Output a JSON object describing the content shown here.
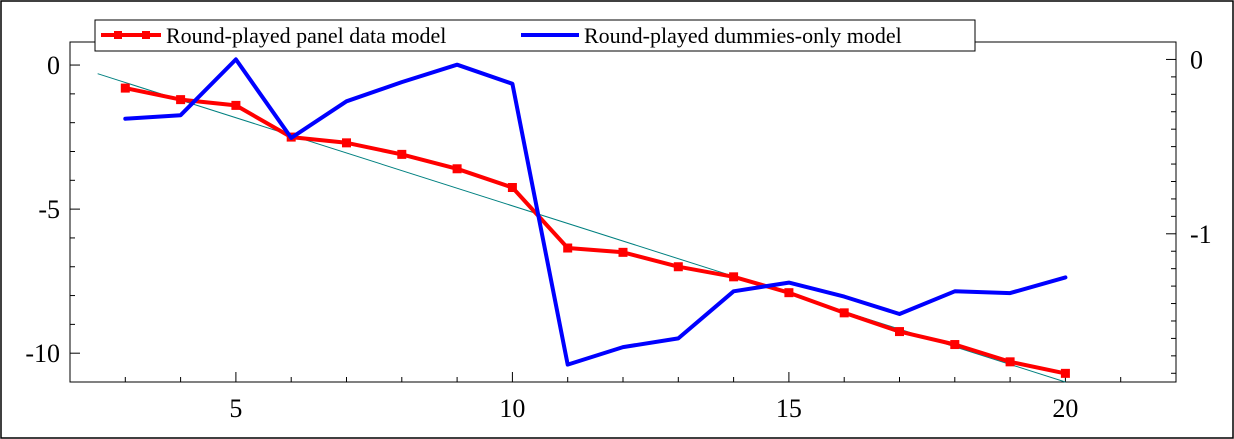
{
  "chart_data": {
    "type": "line",
    "title": "",
    "xlabel": "",
    "ylabel": "",
    "x": [
      3,
      4,
      5,
      6,
      7,
      8,
      9,
      10,
      11,
      12,
      13,
      14,
      15,
      16,
      17,
      18,
      19,
      20
    ],
    "xlim": [
      2,
      22
    ],
    "xticks": [
      "5",
      "10",
      "15",
      "20"
    ],
    "ylim": [
      -11,
      0.8
    ],
    "yticks": [
      "0",
      "-5",
      "-10"
    ],
    "y2lim": [
      -1.85,
      0.1
    ],
    "y2ticks": [
      "0",
      "-1"
    ],
    "grid": false,
    "legend_position": "top-left",
    "series": [
      {
        "name": "Round-played panel data model",
        "axis": "left",
        "color": "#ff0000",
        "marker": "square",
        "values": [
          -0.8,
          -1.2,
          -1.4,
          -2.5,
          -2.7,
          -3.1,
          -3.6,
          -4.25,
          -6.35,
          -6.5,
          -7.0,
          -7.35,
          -7.9,
          -8.6,
          -9.25,
          -9.7,
          -10.3,
          -10.7
        ]
      },
      {
        "name": "Round-played dummies-only model",
        "axis": "right",
        "color": "#0000ff",
        "marker": "none",
        "values": [
          -0.34,
          -0.32,
          0.0,
          -0.45,
          -0.24,
          -0.13,
          -0.03,
          -0.14,
          -1.75,
          -1.65,
          -1.6,
          -1.33,
          -1.28,
          -1.36,
          -1.46,
          -1.33,
          -1.34,
          -1.25
        ]
      }
    ],
    "trendline": {
      "color": "#008080",
      "axis": "left",
      "from": [
        2.5,
        -0.3
      ],
      "to": [
        20,
        -11
      ]
    }
  }
}
